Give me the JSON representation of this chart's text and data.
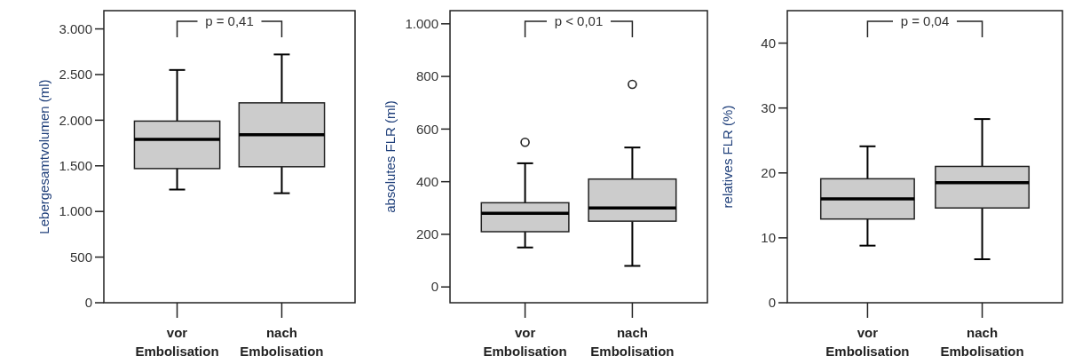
{
  "chart_data": [
    {
      "type": "box",
      "ylabel": "Lebergesamtvolumen (ml)",
      "categories": [
        "vor Embolisation",
        "nach Embolisation"
      ],
      "color": "#cccccc",
      "ylim": [
        0,
        3200
      ],
      "yticks": [
        0,
        500,
        {
          "value": 1000,
          "label": "1.000"
        },
        {
          "value": 1500,
          "label": "1.500"
        },
        {
          "value": 2000,
          "label": "2.000"
        },
        {
          "value": 2500,
          "label": "2.500"
        },
        {
          "value": 3000,
          "label": "3.000"
        }
      ],
      "annotations": [
        "p = 0,41"
      ],
      "boxes": [
        {
          "low": 1240,
          "q1": 1470,
          "median": 1790,
          "q3": 1990,
          "high": 2550
        },
        {
          "low": 1200,
          "q1": 1490,
          "median": 1840,
          "q3": 2190,
          "high": 2720
        }
      ]
    },
    {
      "type": "box",
      "ylabel": "absolutes FLR (ml)",
      "categories": [
        "vor Embolisation",
        "nach Embolisation"
      ],
      "color": "#cccccc",
      "ylim": [
        -60,
        1050
      ],
      "yticks": [
        0,
        200,
        400,
        600,
        800,
        {
          "value": 1000,
          "label": "1.000"
        }
      ],
      "annotations": [
        "p < 0,01"
      ],
      "boxes": [
        {
          "low": 150,
          "q1": 210,
          "median": 280,
          "q3": 320,
          "high": 470,
          "outliers": [
            550
          ]
        },
        {
          "low": 80,
          "q1": 250,
          "median": 300,
          "q3": 410,
          "high": 530,
          "outliers": [
            770
          ]
        }
      ]
    },
    {
      "type": "box",
      "ylabel": "relatives FLR (%)",
      "categories": [
        "vor Embolisation",
        "nach Embolisation"
      ],
      "color": "#cccccc",
      "ylim": [
        0,
        45
      ],
      "yticks": [
        0,
        10,
        20,
        30,
        40
      ],
      "annotations": [
        "p = 0,04"
      ],
      "boxes": [
        {
          "low": 8.8,
          "q1": 12.9,
          "median": 16,
          "q3": 19.1,
          "high": 24.1
        },
        {
          "low": 6.7,
          "q1": 14.6,
          "median": 18.5,
          "q3": 21,
          "high": 28.3
        }
      ]
    }
  ]
}
